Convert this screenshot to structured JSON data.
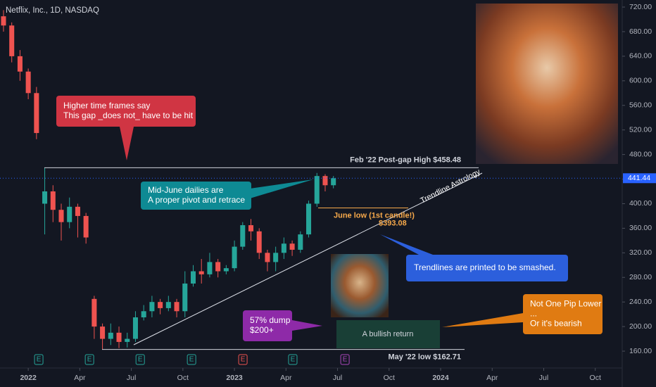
{
  "header": "Netflix, Inc., 1D, NASDAQ",
  "chart_data": {
    "type": "candlestick",
    "x": [
      2021.88,
      2021.92,
      2021.96,
      2022.0,
      2022.04,
      2022.08,
      2022.12,
      2022.16,
      2022.2,
      2022.24,
      2022.28,
      2022.32,
      2022.36,
      2022.4,
      2022.44,
      2022.48,
      2022.52,
      2022.56,
      2022.6,
      2022.64,
      2022.68,
      2022.72,
      2022.76,
      2022.8,
      2022.84,
      2022.88,
      2022.92,
      2022.96,
      2023.0,
      2023.04,
      2023.08,
      2023.12,
      2023.16,
      2023.2,
      2023.24,
      2023.28,
      2023.32,
      2023.36,
      2023.4,
      2023.44,
      2023.48
    ],
    "open": [
      705,
      690,
      640,
      615,
      580,
      400,
      420,
      390,
      370,
      395,
      380,
      245,
      200,
      180,
      190,
      175,
      180,
      215,
      225,
      240,
      230,
      240,
      225,
      270,
      290,
      285,
      305,
      290,
      295,
      330,
      365,
      355,
      320,
      305,
      320,
      335,
      325,
      350,
      400,
      445,
      430
    ],
    "high": [
      715,
      695,
      650,
      620,
      590,
      458.48,
      430,
      400,
      410,
      400,
      385,
      250,
      205,
      205,
      200,
      190,
      225,
      235,
      250,
      245,
      250,
      245,
      290,
      300,
      310,
      320,
      310,
      300,
      340,
      370,
      375,
      360,
      325,
      330,
      345,
      340,
      355,
      405,
      450,
      448,
      445
    ],
    "low": [
      680,
      630,
      600,
      570,
      505,
      350,
      370,
      340,
      360,
      345,
      335,
      180,
      162.71,
      170,
      165,
      166,
      175,
      210,
      215,
      220,
      225,
      215,
      215,
      265,
      270,
      280,
      280,
      285,
      290,
      325,
      340,
      310,
      290,
      290,
      310,
      315,
      320,
      345,
      395,
      420,
      425
    ],
    "close": [
      690,
      640,
      615,
      580,
      515,
      420,
      390,
      370,
      395,
      380,
      345,
      200,
      180,
      190,
      175,
      180,
      215,
      225,
      240,
      230,
      240,
      225,
      270,
      290,
      285,
      305,
      290,
      295,
      330,
      365,
      355,
      320,
      305,
      320,
      335,
      325,
      350,
      400,
      445,
      430,
      441.44
    ],
    "up_color": "#26a69a",
    "down_color": "#ef5350",
    "xlim": [
      2021.863,
      2024.867
    ],
    "xticks": [
      2022,
      {
        "value": 2022.25,
        "label": "Apr"
      },
      {
        "value": 2022.5,
        "label": "Jul"
      },
      {
        "value": 2022.75,
        "label": "Oct"
      },
      2023,
      {
        "value": 2023.25,
        "label": "Apr"
      },
      {
        "value": 2023.5,
        "label": "Jul"
      },
      {
        "value": 2023.75,
        "label": "Oct"
      },
      2024,
      {
        "value": 2024.25,
        "label": "Apr"
      },
      {
        "value": 2024.5,
        "label": "Jul"
      },
      {
        "value": 2024.75,
        "label": "Oct"
      }
    ],
    "ylim": [
      133.7,
      731.5
    ],
    "yticks": [
      {
        "value": 160,
        "label": "160.00"
      },
      {
        "value": 200,
        "label": "200.00"
      },
      {
        "value": 240,
        "label": "240.00"
      },
      {
        "value": 280,
        "label": "280.00"
      },
      {
        "value": 320,
        "label": "320.00"
      },
      {
        "value": 360,
        "label": "360.00"
      },
      {
        "value": 400,
        "label": "400.00"
      },
      {
        "value": 440,
        "label": "440.00"
      },
      {
        "value": 480,
        "label": "480.00"
      },
      {
        "value": 520,
        "label": "520.00"
      },
      {
        "value": 560,
        "label": "560.00"
      },
      {
        "value": 600,
        "label": "600.00"
      },
      {
        "value": 640,
        "label": "640.00"
      },
      {
        "value": 680,
        "label": "680.00"
      },
      {
        "value": 720,
        "label": "720.00"
      }
    ],
    "last_price": 441.44,
    "last_price_color": "#2962ff",
    "levels": [
      {
        "value": 458.48,
        "label": "Feb '22 Post-gap High $458.48",
        "color": "#d1d4dc"
      },
      {
        "value": 162.71,
        "label": "May '22 low $162.71",
        "color": "#d1d4dc"
      },
      {
        "value": 393.08,
        "label": "June low (1st candle!)",
        "price_label": "$393.08",
        "color": "#f7a94a"
      }
    ],
    "trendline_label": "Trendline Astrology",
    "box_label": "A bullish return",
    "callouts": [
      {
        "lines": [
          "Higher time frames say",
          "This gap _does not_ have to be hit"
        ],
        "color": "#d03543"
      },
      {
        "lines": [
          "Mid-June dailies are",
          "A proper pivot and retrace"
        ],
        "color": "#0e8a94"
      },
      {
        "lines": [
          "Trendlines are printed to be smashed."
        ],
        "color": "#2c5fdc"
      },
      {
        "lines": [
          "57% dump",
          "$200+"
        ],
        "color": "#8e2aa8"
      },
      {
        "lines": [
          "Not One Pip Lower",
          "...",
          "Or it's bearish"
        ],
        "color": "#e07b12"
      }
    ],
    "earnings": [
      {
        "x": 2022.051,
        "label": "E",
        "color": "#26a69a"
      },
      {
        "x": 2022.297,
        "label": "E",
        "color": "#26a69a"
      },
      {
        "x": 2022.543,
        "label": "E",
        "color": "#26a69a"
      },
      {
        "x": 2022.792,
        "label": "E",
        "color": "#26a69a"
      },
      {
        "x": 2023.041,
        "label": "E",
        "color": "#ef5350"
      },
      {
        "x": 2023.283,
        "label": "E",
        "color": "#26a69a"
      },
      {
        "x": 2023.536,
        "label": "E",
        "color": "#ab47bc"
      }
    ]
  }
}
